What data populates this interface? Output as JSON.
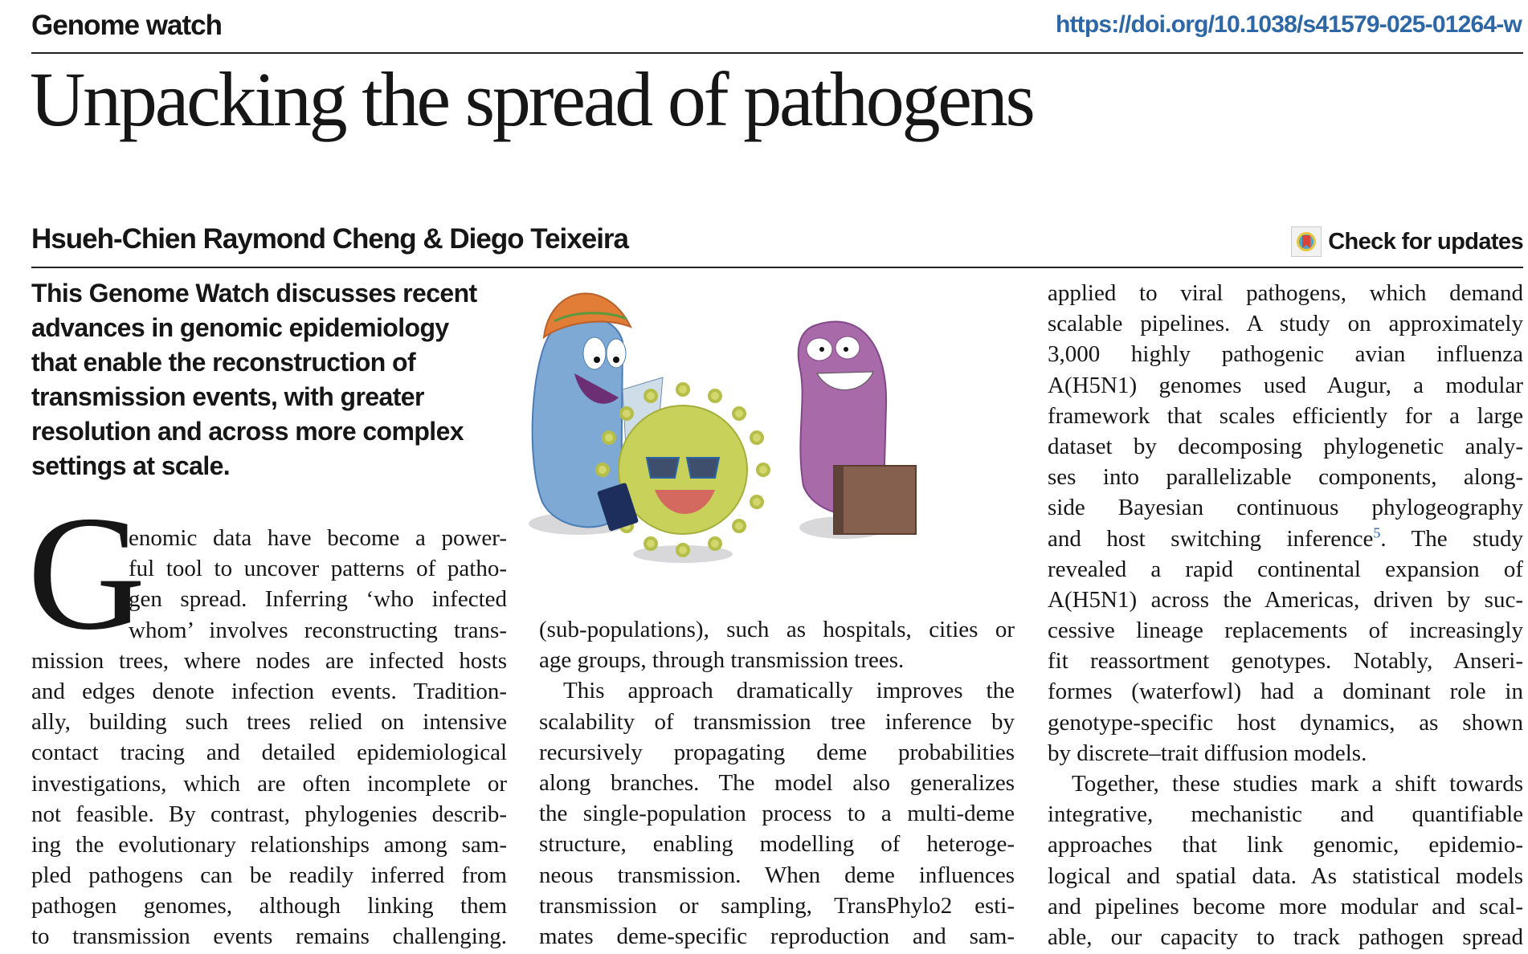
{
  "header": {
    "section": "Genome watch",
    "doi": "https://doi.org/10.1038/s41579-025-01264-w",
    "doi_color": "#2d67a6"
  },
  "article": {
    "title": "Unpacking the spread of pathogens",
    "authors": "Hsueh-Chien Raymond Cheng & Diego Teixeira",
    "check_updates": "Check for updates",
    "check_updates_icon": "bookmark-badge-icon",
    "abstract": [
      "This Genome Watch discusses recent",
      "advances in genomic epidemiology",
      "that enable the reconstruction of",
      "transmission events, with greater",
      "resolution and across more complex",
      "settings at scale."
    ],
    "illustration": "cartoon-pathogens-travelling",
    "drop_cap": "G",
    "col1": [
      {
        "t": "enomic data have become a power-",
        "dc": true
      },
      {
        "t": "ful tool to uncover patterns of patho-",
        "dc": true
      },
      {
        "t": "gen spread. Inferring ‘who infected",
        "dc": true
      },
      {
        "t": "whom’ involves reconstructing trans-",
        "dc": true
      },
      {
        "t": "mission trees, where nodes are infected hosts"
      },
      {
        "t": "and edges denote infection events. Tradition-"
      },
      {
        "t": "ally, building such trees relied on intensive"
      },
      {
        "t": "contact tracing and detailed epidemiological"
      },
      {
        "t": "investigations, which are often incomplete or"
      },
      {
        "t": "not feasible. By contrast, phylogenies describ-"
      },
      {
        "t": "ing the evolutionary relationships among sam-"
      },
      {
        "t": "pled pathogens can be readily inferred from"
      },
      {
        "t": "pathogen genomes, although linking them"
      },
      {
        "t": "to transmission events remains challenging."
      }
    ],
    "col2": [
      {
        "t": "(sub-populations), such as hospitals, cities or"
      },
      {
        "t": "age groups, through transmission trees.",
        "end": true
      },
      {
        "t": "This approach dramatically improves the",
        "ind": true
      },
      {
        "t": "scalability of transmission tree inference by"
      },
      {
        "t": "recursively propagating deme probabilities"
      },
      {
        "t": "along branches. The model also generalizes"
      },
      {
        "t": "the single-population process to a multi-deme"
      },
      {
        "t": "structure, enabling modelling of heteroge-"
      },
      {
        "t": "neous transmission. When deme influences"
      },
      {
        "t": "transmission or sampling, TransPhylo2 esti-"
      },
      {
        "t": "mates deme-specific reproduction and sam-"
      }
    ],
    "col3": [
      {
        "t": "applied to viral pathogens, which demand"
      },
      {
        "t": "scalable pipelines. A study on approximately"
      },
      {
        "t": "3,000 highly pathogenic avian influenza"
      },
      {
        "t": "A(H5N1) genomes used Augur, a modular"
      },
      {
        "t": "framework that scales efficiently for a large"
      },
      {
        "t": "dataset by decomposing phylogenetic analy-"
      },
      {
        "t": "ses into parallelizable components, along-"
      },
      {
        "t": "side Bayesian continuous phylogeography"
      },
      {
        "t": "and host switching inference",
        "sup": "5",
        "post": ". The study"
      },
      {
        "t": "revealed a rapid continental expansion of"
      },
      {
        "t": "A(H5N1) across the Americas, driven by suc-"
      },
      {
        "t": "cessive lineage replacements of increasingly"
      },
      {
        "t": "fit reassortment genotypes. Notably, Anseri-"
      },
      {
        "t": "formes (waterfowl) had a dominant role in"
      },
      {
        "t": "genotype-specific host dynamics, as shown"
      },
      {
        "t": "by discrete–trait diffusion models.",
        "end": true
      },
      {
        "t": "Together, these studies mark a shift towards",
        "ind": true
      },
      {
        "t": "integrative, mechanistic and quantifiable"
      },
      {
        "t": "approaches that link genomic, epidemio-"
      },
      {
        "t": "logical and spatial data. As statistical models"
      },
      {
        "t": "and pipelines become more modular and scal-"
      },
      {
        "t": "able, our capacity to track pathogen spread"
      }
    ]
  }
}
